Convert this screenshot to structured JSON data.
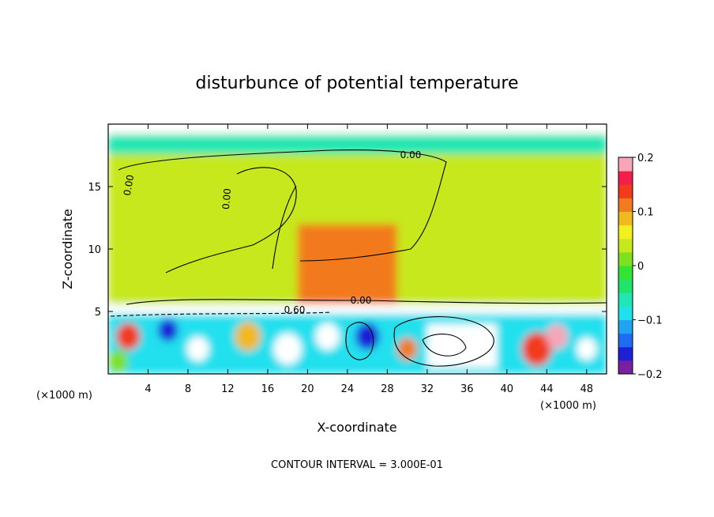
{
  "chart_data": {
    "type": "heatmap",
    "title": "disturbunce of potential temperature",
    "xlabel": "X-coordinate",
    "ylabel": "Z-coordinate",
    "x_unit": "(×1000 m)",
    "z_unit": "(×1000 m)",
    "x_ticks": [
      "4",
      "8",
      "12",
      "16",
      "20",
      "24",
      "28",
      "32",
      "36",
      "40",
      "44",
      "48"
    ],
    "y_ticks": [
      "5",
      "10",
      "15"
    ],
    "xlim": [
      0,
      50
    ],
    "ylim": [
      0,
      20
    ],
    "colorbar": {
      "min": -0.2,
      "max": 0.2,
      "tick_labels": [
        "0.2",
        "0.1",
        "0",
        "−0.1",
        "−0.2"
      ],
      "tick_values": [
        0.2,
        0.1,
        0,
        -0.1,
        -0.2
      ],
      "colors": [
        "#7a1fa2",
        "#1f1fd8",
        "#1f6cf2",
        "#22a3f2",
        "#21e0ee",
        "#22e7b4",
        "#22e36b",
        "#33e433",
        "#7fe01f",
        "#c6e81f",
        "#f2f01f",
        "#f2b81f",
        "#f27a1f",
        "#f23a1f",
        "#f21f4a",
        "#f7a6b8"
      ]
    },
    "contour_labels": [
      "0.00",
      "0.00",
      "0.00",
      "0.00",
      "0.60"
    ],
    "contour_interval_text": "CONTOUR INTERVAL = 3.000E-01",
    "regions": [
      {
        "x": [
          0,
          50
        ],
        "z": [
          19.2,
          20
        ],
        "value": "outside"
      },
      {
        "x": [
          0,
          50
        ],
        "z": [
          17.6,
          19.2
        ],
        "value": -0.07
      },
      {
        "x": [
          0,
          50
        ],
        "z": [
          5.6,
          17.6
        ],
        "value": 0.03
      },
      {
        "x": [
          19,
          29
        ],
        "z": [
          5.6,
          12
        ],
        "value": 0.1
      },
      {
        "x": [
          0,
          50
        ],
        "z": [
          4.8,
          5.6
        ],
        "value": "outside"
      },
      {
        "x": [
          0,
          50
        ],
        "z": [
          0,
          4.8
        ],
        "value": -0.1
      },
      {
        "x": [
          32,
          39
        ],
        "z": [
          0.5,
          4.0
        ],
        "value": "outside"
      }
    ]
  }
}
